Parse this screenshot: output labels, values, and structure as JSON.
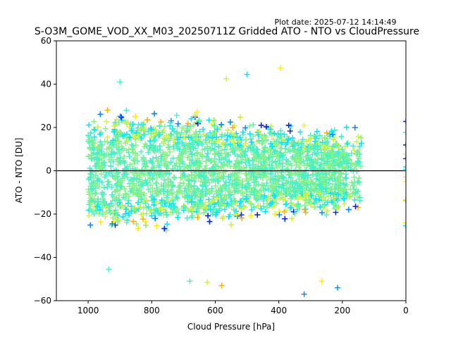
{
  "plot_date": "Plot date: 2025-07-12 14:14:49",
  "chart_data": {
    "type": "scatter",
    "title": "S-O3M_GOME_VOD_XX_M03_20250711Z Gridded ATO - NTO vs CloudPressure",
    "xlabel": "Cloud Pressure [hPa]",
    "ylabel": "ATO - NTO [DU]",
    "xlim": [
      1100,
      0
    ],
    "ylim": [
      -60,
      60
    ],
    "x_inverted": true,
    "xticks": [
      1000,
      800,
      600,
      400,
      200,
      0
    ],
    "yticks": [
      -60,
      -40,
      -20,
      0,
      20,
      40,
      60
    ],
    "xtick_labels": [
      "1000",
      "800",
      "600",
      "400",
      "200",
      "0"
    ],
    "ytick_labels": [
      "−60",
      "−40",
      "−20",
      "0",
      "20",
      "40",
      "60"
    ],
    "reference_line_y": 0,
    "marker": "plus",
    "colors": [
      "#0022dd",
      "#0088ff",
      "#00e5ff",
      "#44f0c8",
      "#88f088",
      "#ccf044",
      "#ffee00",
      "#ffaa00"
    ],
    "cluster": {
      "x_range": [
        1000,
        140
      ],
      "y_center": 0,
      "y_spread_at_1000": 28,
      "y_spread_at_250": 18,
      "stray_points_x": 0
    },
    "outliers": [
      {
        "x": 395,
        "y": 47.5
      },
      {
        "x": 900,
        "y": 41
      },
      {
        "x": 500,
        "y": 44.5
      },
      {
        "x": 565,
        "y": 42.5
      },
      {
        "x": 580,
        "y": -53
      },
      {
        "x": 320,
        "y": -57
      },
      {
        "x": 625,
        "y": -51.5
      },
      {
        "x": 680,
        "y": -51
      },
      {
        "x": 265,
        "y": -51
      },
      {
        "x": 935,
        "y": -45.5
      },
      {
        "x": 215,
        "y": -54
      }
    ]
  }
}
